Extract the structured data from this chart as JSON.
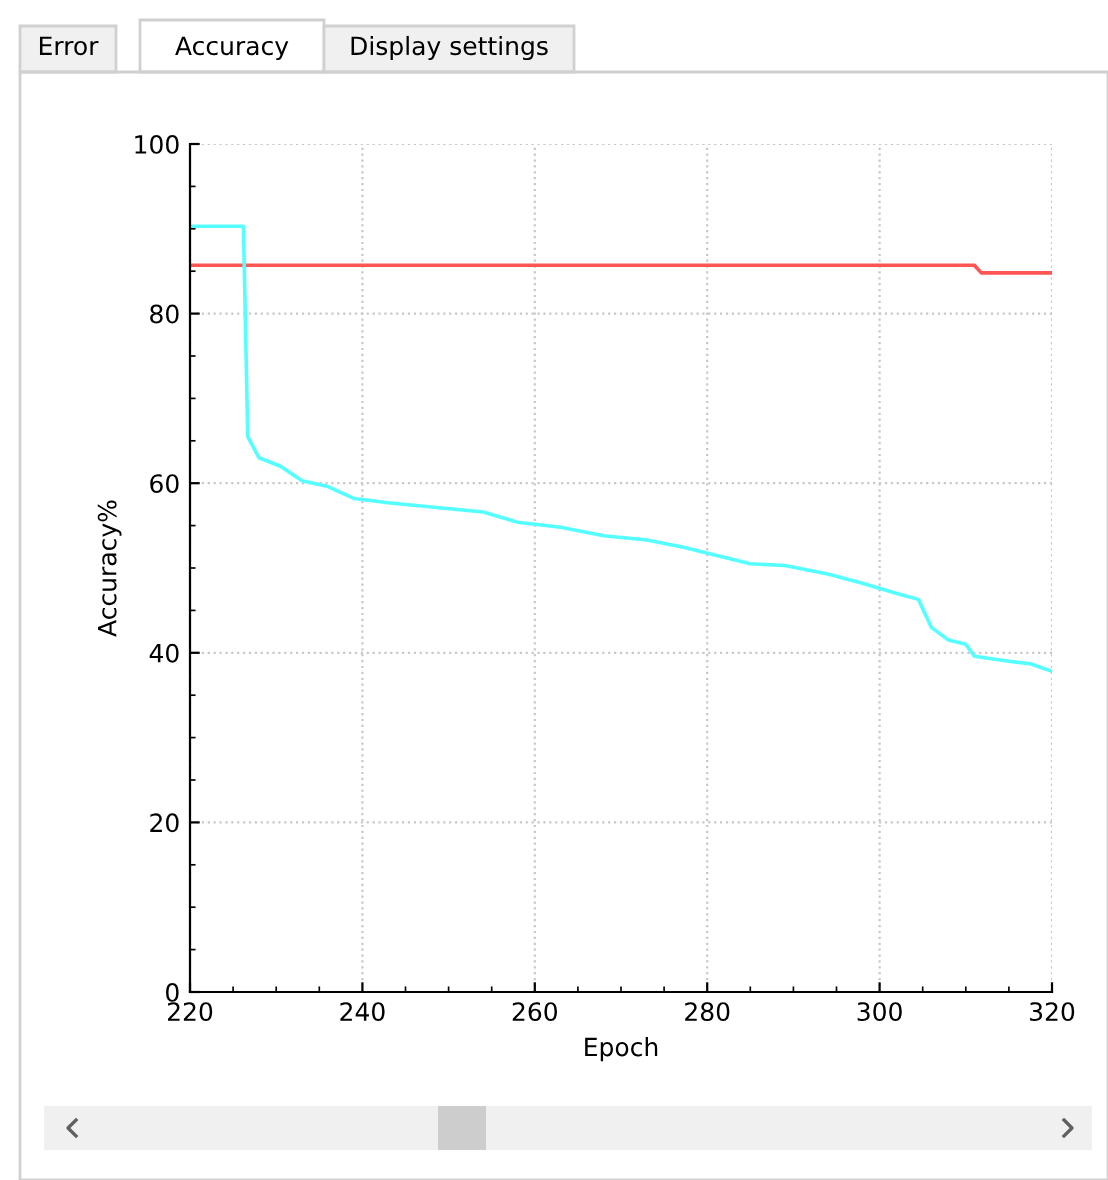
{
  "chart_data": {
    "type": "line",
    "xlabel": "Epoch",
    "ylabel": "Accuracy%",
    "annotations": [
      "Error",
      "Accuracy",
      "Display settings"
    ],
    "xlim": [
      220,
      320
    ],
    "ylim": [
      0,
      100
    ],
    "xticks": [
      220,
      240,
      260,
      280,
      300,
      320
    ],
    "yticks": [
      0,
      20,
      40,
      60,
      80,
      100
    ],
    "grid": true,
    "line_style": "solid",
    "marker": "none",
    "series": [
      {
        "color": "#ff5555",
        "x": [
          220,
          311,
          311.8,
          320
        ],
        "values": [
          85.7,
          85.7,
          84.8,
          84.8
        ]
      },
      {
        "color": "#55ffff",
        "x": [
          220,
          226.2,
          226.7,
          228,
          230.5,
          233,
          236,
          239,
          243,
          248,
          254,
          258,
          263,
          268,
          273,
          277,
          281,
          285,
          289,
          294,
          298,
          302,
          304.5,
          306,
          308,
          310,
          311,
          315,
          317.5,
          320
        ],
        "values": [
          90.3,
          90.3,
          65.5,
          63,
          62,
          60.3,
          59.6,
          58.2,
          57.7,
          57.2,
          56.6,
          55.4,
          54.8,
          53.8,
          53.3,
          52.5,
          51.5,
          50.5,
          50.3,
          49.3,
          48.2,
          47,
          46.3,
          43,
          41.5,
          41,
          39.6,
          39,
          38.7,
          37.8
        ]
      }
    ]
  }
}
